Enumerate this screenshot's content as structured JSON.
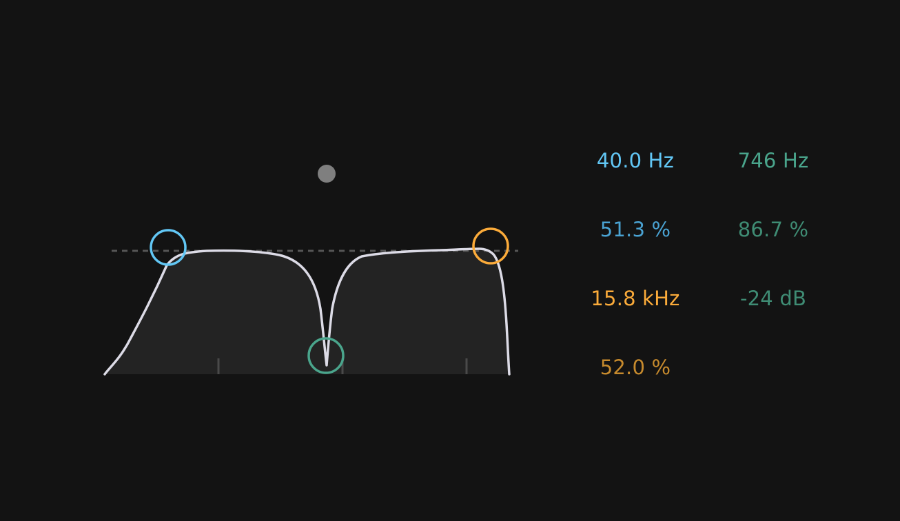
{
  "colors": {
    "background": "#131313",
    "curve": "#dcdbe6",
    "curve_fill": "#232323",
    "reference_line": "#555555",
    "tick": "#4a4a4a",
    "low_cut": "#62c7f5",
    "low_cut_q": "#4aa3d3",
    "high_cut": "#fbab3a",
    "high_cut_q": "#c68a2d",
    "notch": "#4aa58c",
    "notch_q": "#3f8c74",
    "inactive_dot": "#7f7f7f"
  },
  "icons": {
    "low_cut_handle": "circle-outline-icon",
    "high_cut_handle": "circle-outline-icon",
    "notch_handle": "circle-outline-icon",
    "gain_dot": "filled-circle-icon"
  },
  "bands": {
    "low_cut": {
      "frequency": "40.0 Hz",
      "q": "51.3 %"
    },
    "high_cut": {
      "frequency": "15.8 kHz",
      "q": "52.0 %"
    },
    "notch": {
      "frequency": "746 Hz",
      "q": "86.7 %",
      "gain": "-24 dB"
    }
  }
}
